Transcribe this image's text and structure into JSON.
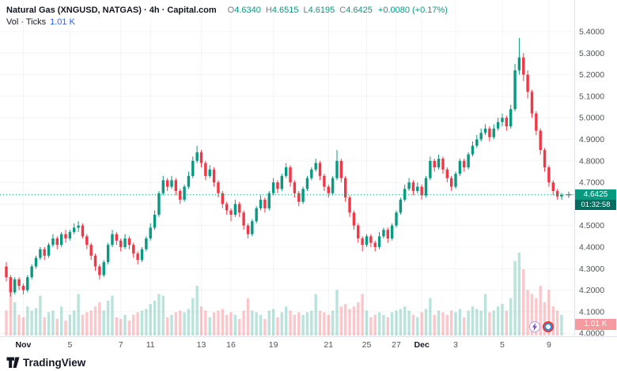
{
  "header": {
    "symbol_line": "Natural Gas (XNGUSD, NATGAS) · 4h · Capital.com",
    "ohlc": {
      "o_label": "O",
      "o": "4.6340",
      "h_label": "H",
      "h": "4.6515",
      "l_label": "L",
      "l": "4.6195",
      "c_label": "C",
      "c": "4.6425",
      "change": "+0.0080 (+0.17%)"
    },
    "indicator": {
      "name": "Vol · Ticks",
      "value": "1.01 K"
    }
  },
  "price_scale": {
    "current": {
      "price": "4.6425",
      "countdown": "01:32:58"
    },
    "volume_label": "1.01 K"
  },
  "footer": {
    "logo_text": "TradingView"
  },
  "colors": {
    "up": "#089981",
    "down": "#f23645",
    "vol_up": "rgba(8,153,129,0.28)",
    "vol_down": "rgba(242,54,69,0.28)",
    "axis_text": "#50535e",
    "badge_up_bg": "#089981",
    "badge_countdown_bg": "#056d5f",
    "badge_vol_bg": "#f59a9e"
  },
  "chart_data": {
    "type": "candlestick",
    "title": "Natural Gas (XNGUSD, NATGAS) · 4h · Capital.com",
    "timeframe": "4h",
    "current_price": 4.6425,
    "grid": true,
    "legend_position": "none",
    "y_axis": {
      "side": "right",
      "range": [
        4.0,
        5.4
      ],
      "ticks": [
        {
          "label": "5.4000",
          "value": 5.4
        },
        {
          "label": "5.3000",
          "value": 5.3
        },
        {
          "label": "5.2000",
          "value": 5.2
        },
        {
          "label": "5.1000",
          "value": 5.1
        },
        {
          "label": "5.0000",
          "value": 5.0
        },
        {
          "label": "4.9000",
          "value": 4.9
        },
        {
          "label": "4.8000",
          "value": 4.8
        },
        {
          "label": "4.7000",
          "value": 4.7
        },
        {
          "label": "4.6000",
          "value": 4.6
        },
        {
          "label": "4.5000",
          "value": 4.5
        },
        {
          "label": "4.4000",
          "value": 4.4
        },
        {
          "label": "4.3000",
          "value": 4.3
        },
        {
          "label": "4.2000",
          "value": 4.2
        },
        {
          "label": "4.1000",
          "value": 4.1
        },
        {
          "label": "4.0000",
          "value": 4.0
        }
      ]
    },
    "x_axis": {
      "ticks": [
        {
          "label": "Nov",
          "bar": 4,
          "major": true
        },
        {
          "label": "5",
          "bar": 15
        },
        {
          "label": "7",
          "bar": 27
        },
        {
          "label": "11",
          "bar": 34
        },
        {
          "label": "13",
          "bar": 46
        },
        {
          "label": "16",
          "bar": 53
        },
        {
          "label": "19",
          "bar": 63
        },
        {
          "label": "21",
          "bar": 76
        },
        {
          "label": "25",
          "bar": 85
        },
        {
          "label": "27",
          "bar": 92
        },
        {
          "label": "Dec",
          "bar": 98,
          "major": true
        },
        {
          "label": "3",
          "bar": 106
        },
        {
          "label": "5",
          "bar": 117
        },
        {
          "label": "9",
          "bar": 128
        }
      ]
    },
    "candles_format": [
      "open",
      "high",
      "low",
      "close",
      "relative_volume"
    ],
    "candles": [
      [
        4.31,
        4.33,
        4.24,
        4.26,
        0.3
      ],
      [
        4.26,
        4.27,
        4.17,
        4.19,
        0.7
      ],
      [
        4.19,
        4.26,
        4.18,
        4.25,
        0.4
      ],
      [
        4.25,
        4.26,
        4.2,
        4.22,
        0.25
      ],
      [
        4.22,
        4.23,
        4.18,
        4.2,
        0.22
      ],
      [
        4.2,
        4.27,
        4.19,
        4.26,
        0.35
      ],
      [
        4.26,
        4.32,
        4.25,
        4.31,
        0.3
      ],
      [
        4.31,
        4.36,
        4.3,
        4.35,
        0.33
      ],
      [
        4.35,
        4.4,
        4.34,
        4.39,
        0.48
      ],
      [
        4.39,
        4.4,
        4.34,
        4.36,
        0.22
      ],
      [
        4.36,
        4.42,
        4.35,
        4.41,
        0.28
      ],
      [
        4.41,
        4.46,
        4.4,
        4.44,
        0.3
      ],
      [
        4.44,
        4.45,
        4.39,
        4.41,
        0.2
      ],
      [
        4.41,
        4.47,
        4.4,
        4.46,
        0.35
      ],
      [
        4.46,
        4.48,
        4.42,
        4.44,
        0.18
      ],
      [
        4.44,
        4.48,
        4.43,
        4.47,
        0.25
      ],
      [
        4.47,
        4.51,
        4.46,
        4.49,
        0.3
      ],
      [
        4.49,
        4.52,
        4.47,
        4.5,
        0.5
      ],
      [
        4.5,
        4.51,
        4.44,
        4.45,
        0.25
      ],
      [
        4.45,
        4.46,
        4.39,
        4.41,
        0.28
      ],
      [
        4.41,
        4.42,
        4.34,
        4.36,
        0.3
      ],
      [
        4.36,
        4.37,
        4.29,
        4.31,
        0.35
      ],
      [
        4.31,
        4.32,
        4.25,
        4.27,
        0.4
      ],
      [
        4.27,
        4.34,
        4.26,
        4.33,
        0.3
      ],
      [
        4.33,
        4.42,
        4.32,
        4.41,
        0.42
      ],
      [
        4.41,
        4.48,
        4.4,
        4.46,
        0.48
      ],
      [
        4.46,
        4.47,
        4.41,
        4.43,
        0.22
      ],
      [
        4.43,
        4.44,
        4.38,
        4.4,
        0.2
      ],
      [
        4.4,
        4.46,
        4.39,
        4.44,
        0.25
      ],
      [
        4.44,
        4.45,
        4.39,
        4.41,
        0.18
      ],
      [
        4.41,
        4.42,
        4.35,
        4.37,
        0.25
      ],
      [
        4.37,
        4.38,
        4.32,
        4.34,
        0.28
      ],
      [
        4.34,
        4.4,
        4.33,
        4.39,
        0.3
      ],
      [
        4.39,
        4.45,
        4.38,
        4.44,
        0.32
      ],
      [
        4.44,
        4.51,
        4.43,
        4.49,
        0.38
      ],
      [
        4.49,
        4.57,
        4.48,
        4.55,
        0.42
      ],
      [
        4.55,
        4.66,
        4.54,
        4.65,
        0.5
      ],
      [
        4.65,
        4.73,
        4.64,
        4.71,
        0.48
      ],
      [
        4.71,
        4.72,
        4.66,
        4.68,
        0.22
      ],
      [
        4.68,
        4.73,
        4.67,
        4.71,
        0.25
      ],
      [
        4.71,
        4.72,
        4.64,
        4.66,
        0.28
      ],
      [
        4.66,
        4.67,
        4.6,
        4.62,
        0.3
      ],
      [
        4.62,
        4.69,
        4.61,
        4.68,
        0.28
      ],
      [
        4.68,
        4.75,
        4.67,
        4.73,
        0.32
      ],
      [
        4.73,
        4.82,
        4.72,
        4.8,
        0.45
      ],
      [
        4.8,
        4.87,
        4.79,
        4.84,
        0.6
      ],
      [
        4.84,
        4.85,
        4.77,
        4.79,
        0.35
      ],
      [
        4.79,
        4.8,
        4.71,
        4.73,
        0.3
      ],
      [
        4.73,
        4.78,
        4.72,
        4.76,
        0.22
      ],
      [
        4.76,
        4.77,
        4.68,
        4.7,
        0.28
      ],
      [
        4.7,
        4.71,
        4.63,
        4.65,
        0.3
      ],
      [
        4.65,
        4.66,
        4.58,
        4.6,
        0.32
      ],
      [
        4.6,
        4.61,
        4.55,
        4.57,
        0.25
      ],
      [
        4.57,
        4.58,
        4.52,
        4.55,
        0.28
      ],
      [
        4.55,
        4.62,
        4.54,
        4.6,
        0.25
      ],
      [
        4.6,
        4.61,
        4.54,
        4.56,
        0.2
      ],
      [
        4.56,
        4.57,
        4.48,
        4.5,
        0.3
      ],
      [
        4.5,
        4.51,
        4.44,
        4.46,
        0.45
      ],
      [
        4.46,
        4.53,
        4.45,
        4.52,
        0.3
      ],
      [
        4.52,
        4.59,
        4.51,
        4.58,
        0.28
      ],
      [
        4.58,
        4.64,
        4.57,
        4.62,
        0.25
      ],
      [
        4.62,
        4.63,
        4.56,
        4.58,
        0.2
      ],
      [
        4.58,
        4.66,
        4.57,
        4.65,
        0.3
      ],
      [
        4.65,
        4.72,
        4.64,
        4.7,
        0.32
      ],
      [
        4.7,
        4.71,
        4.65,
        4.67,
        0.22
      ],
      [
        4.67,
        4.74,
        4.66,
        4.73,
        0.28
      ],
      [
        4.73,
        4.79,
        4.72,
        4.77,
        0.35
      ],
      [
        4.77,
        4.78,
        4.68,
        4.7,
        0.3
      ],
      [
        4.7,
        4.71,
        4.63,
        4.65,
        0.25
      ],
      [
        4.65,
        4.66,
        4.59,
        4.61,
        0.28
      ],
      [
        4.61,
        4.68,
        4.6,
        4.67,
        0.25
      ],
      [
        4.67,
        4.73,
        4.66,
        4.72,
        0.28
      ],
      [
        4.72,
        4.77,
        4.71,
        4.76,
        0.3
      ],
      [
        4.76,
        4.81,
        4.75,
        4.79,
        0.5
      ],
      [
        4.79,
        4.8,
        4.71,
        4.73,
        0.3
      ],
      [
        4.73,
        4.74,
        4.66,
        4.68,
        0.28
      ],
      [
        4.68,
        4.69,
        4.63,
        4.65,
        0.25
      ],
      [
        4.65,
        4.73,
        4.64,
        4.72,
        0.3
      ],
      [
        4.72,
        4.85,
        4.71,
        4.8,
        0.55
      ],
      [
        4.8,
        4.81,
        4.7,
        4.72,
        0.35
      ],
      [
        4.72,
        4.73,
        4.61,
        4.63,
        0.38
      ],
      [
        4.63,
        4.64,
        4.54,
        4.56,
        0.32
      ],
      [
        4.56,
        4.57,
        4.48,
        4.5,
        0.35
      ],
      [
        4.5,
        4.51,
        4.42,
        4.44,
        0.4
      ],
      [
        4.44,
        4.45,
        4.38,
        4.41,
        0.5
      ],
      [
        4.41,
        4.46,
        4.4,
        4.45,
        0.3
      ],
      [
        4.45,
        4.46,
        4.4,
        4.42,
        0.22
      ],
      [
        4.42,
        4.43,
        4.38,
        4.4,
        0.25
      ],
      [
        4.4,
        4.47,
        4.39,
        4.45,
        0.28
      ],
      [
        4.45,
        4.49,
        4.44,
        4.48,
        0.25
      ],
      [
        4.48,
        4.49,
        4.42,
        4.44,
        0.22
      ],
      [
        4.44,
        4.51,
        4.43,
        4.5,
        0.28
      ],
      [
        4.5,
        4.57,
        4.49,
        4.56,
        0.3
      ],
      [
        4.56,
        4.63,
        4.55,
        4.62,
        0.32
      ],
      [
        4.62,
        4.69,
        4.61,
        4.67,
        0.35
      ],
      [
        4.67,
        4.72,
        4.66,
        4.7,
        0.3
      ],
      [
        4.7,
        4.71,
        4.64,
        4.66,
        0.25
      ],
      [
        4.66,
        4.7,
        4.65,
        4.68,
        0.22
      ],
      [
        4.68,
        4.69,
        4.62,
        4.64,
        0.28
      ],
      [
        4.64,
        4.73,
        4.63,
        4.72,
        0.32
      ],
      [
        4.72,
        4.82,
        4.71,
        4.8,
        0.45
      ],
      [
        4.8,
        4.81,
        4.75,
        4.77,
        0.25
      ],
      [
        4.77,
        4.83,
        4.76,
        4.81,
        0.3
      ],
      [
        4.81,
        4.82,
        4.74,
        4.76,
        0.28
      ],
      [
        4.76,
        4.77,
        4.7,
        4.72,
        0.25
      ],
      [
        4.72,
        4.73,
        4.66,
        4.68,
        0.3
      ],
      [
        4.68,
        4.75,
        4.67,
        4.74,
        0.28
      ],
      [
        4.74,
        4.81,
        4.73,
        4.8,
        0.32
      ],
      [
        4.8,
        4.81,
        4.75,
        4.77,
        0.22
      ],
      [
        4.77,
        4.84,
        4.76,
        4.83,
        0.3
      ],
      [
        4.83,
        4.89,
        4.82,
        4.87,
        0.35
      ],
      [
        4.87,
        4.92,
        4.86,
        4.9,
        0.32
      ],
      [
        4.9,
        4.95,
        4.89,
        4.93,
        0.3
      ],
      [
        4.93,
        4.97,
        4.92,
        4.95,
        0.5
      ],
      [
        4.95,
        4.96,
        4.89,
        4.91,
        0.28
      ],
      [
        4.91,
        4.97,
        4.9,
        4.95,
        0.3
      ],
      [
        4.95,
        5.0,
        4.94,
        4.98,
        0.35
      ],
      [
        4.98,
        5.02,
        4.96,
        5.0,
        0.38
      ],
      [
        5.0,
        5.01,
        4.94,
        4.96,
        0.3
      ],
      [
        4.96,
        5.06,
        4.95,
        5.04,
        0.45
      ],
      [
        5.04,
        5.25,
        5.03,
        5.22,
        0.9
      ],
      [
        5.22,
        5.37,
        5.2,
        5.28,
        1.0
      ],
      [
        5.28,
        5.3,
        5.17,
        5.2,
        0.8
      ],
      [
        5.2,
        5.22,
        5.09,
        5.12,
        0.55
      ],
      [
        5.12,
        5.13,
        5.0,
        5.02,
        0.5
      ],
      [
        5.02,
        5.03,
        4.92,
        4.94,
        0.45
      ],
      [
        4.94,
        4.95,
        4.83,
        4.85,
        0.6
      ],
      [
        4.85,
        4.86,
        4.75,
        4.77,
        0.4
      ],
      [
        4.77,
        4.78,
        4.68,
        4.7,
        0.55
      ],
      [
        4.7,
        4.71,
        4.64,
        4.66,
        0.35
      ],
      [
        4.66,
        4.67,
        4.62,
        4.635,
        0.3
      ],
      [
        4.634,
        4.6515,
        4.6195,
        4.6425,
        0.25
      ]
    ]
  }
}
